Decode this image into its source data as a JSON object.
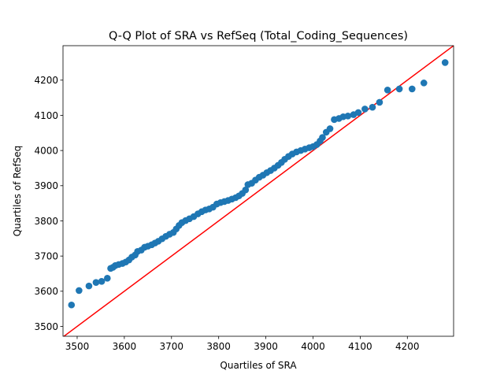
{
  "chart_data": {
    "type": "scatter",
    "title": "Q-Q Plot of SRA vs RefSeq (Total_Coding_Sequences)",
    "xlabel": "Quartiles of SRA",
    "ylabel": "Quartiles of RefSeq",
    "xlim": [
      3470,
      4298
    ],
    "ylim": [
      3472,
      4298
    ],
    "xticks": [
      3500,
      3600,
      3700,
      3800,
      3900,
      4000,
      4100,
      4200
    ],
    "yticks": [
      3500,
      3600,
      3700,
      3800,
      3900,
      4000,
      4100,
      4200
    ],
    "grid": false,
    "legend": "none",
    "marker_color": "#1f77b4",
    "reference_line": {
      "color": "#ff0000",
      "from": [
        3470,
        3470
      ],
      "to": [
        4298,
        4298
      ]
    },
    "points": [
      [
        3488,
        3561
      ],
      [
        3504,
        3602
      ],
      [
        3525,
        3615
      ],
      [
        3540,
        3625
      ],
      [
        3552,
        3628
      ],
      [
        3564,
        3637
      ],
      [
        3571,
        3665
      ],
      [
        3576,
        3668
      ],
      [
        3581,
        3673
      ],
      [
        3588,
        3676
      ],
      [
        3596,
        3679
      ],
      [
        3603,
        3683
      ],
      [
        3610,
        3689
      ],
      [
        3616,
        3697
      ],
      [
        3623,
        3703
      ],
      [
        3628,
        3713
      ],
      [
        3636,
        3717
      ],
      [
        3643,
        3725
      ],
      [
        3650,
        3728
      ],
      [
        3658,
        3732
      ],
      [
        3665,
        3737
      ],
      [
        3672,
        3742
      ],
      [
        3680,
        3749
      ],
      [
        3688,
        3756
      ],
      [
        3696,
        3762
      ],
      [
        3704,
        3767
      ],
      [
        3710,
        3777
      ],
      [
        3716,
        3787
      ],
      [
        3722,
        3795
      ],
      [
        3730,
        3801
      ],
      [
        3738,
        3806
      ],
      [
        3747,
        3812
      ],
      [
        3756,
        3820
      ],
      [
        3764,
        3826
      ],
      [
        3772,
        3831
      ],
      [
        3780,
        3834
      ],
      [
        3788,
        3839
      ],
      [
        3796,
        3848
      ],
      [
        3804,
        3852
      ],
      [
        3812,
        3855
      ],
      [
        3820,
        3858
      ],
      [
        3828,
        3862
      ],
      [
        3836,
        3866
      ],
      [
        3843,
        3871
      ],
      [
        3850,
        3878
      ],
      [
        3857,
        3888
      ],
      [
        3862,
        3903
      ],
      [
        3870,
        3907
      ],
      [
        3878,
        3916
      ],
      [
        3886,
        3924
      ],
      [
        3894,
        3930
      ],
      [
        3902,
        3937
      ],
      [
        3910,
        3943
      ],
      [
        3918,
        3950
      ],
      [
        3926,
        3958
      ],
      [
        3933,
        3966
      ],
      [
        3940,
        3975
      ],
      [
        3948,
        3983
      ],
      [
        3956,
        3990
      ],
      [
        3965,
        3996
      ],
      [
        3974,
        4000
      ],
      [
        3983,
        4004
      ],
      [
        3992,
        4008
      ],
      [
        4000,
        4011
      ],
      [
        4008,
        4017
      ],
      [
        4015,
        4027
      ],
      [
        4020,
        4037
      ],
      [
        4028,
        4052
      ],
      [
        4036,
        4062
      ],
      [
        4045,
        4088
      ],
      [
        4055,
        4091
      ],
      [
        4064,
        4096
      ],
      [
        4074,
        4098
      ],
      [
        4086,
        4102
      ],
      [
        4096,
        4108
      ],
      [
        4110,
        4118
      ],
      [
        4126,
        4123
      ],
      [
        4141,
        4137
      ],
      [
        4158,
        4172
      ],
      [
        4183,
        4175
      ],
      [
        4210,
        4175
      ],
      [
        4235,
        4192
      ],
      [
        4280,
        4250
      ]
    ]
  }
}
